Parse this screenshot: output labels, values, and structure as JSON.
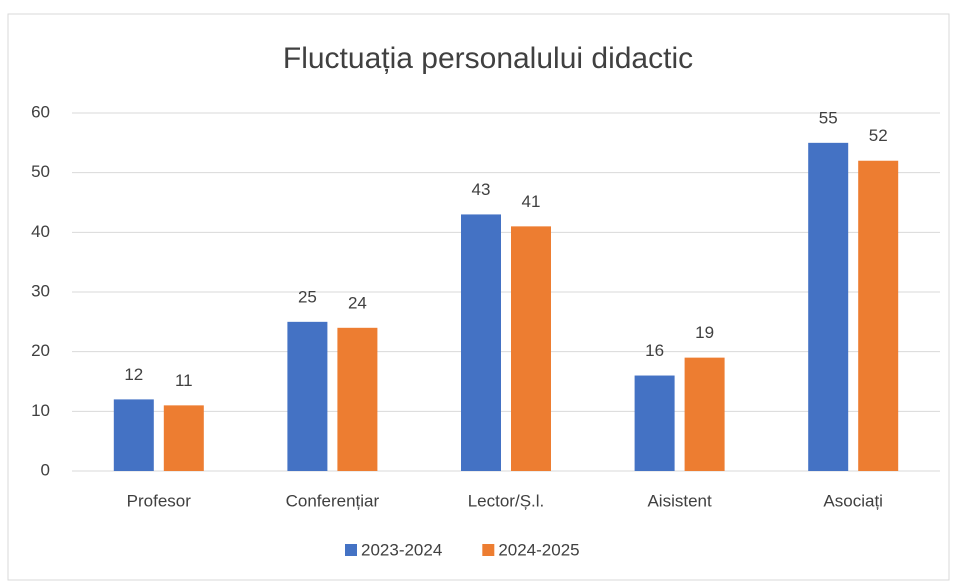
{
  "chart_data": {
    "type": "bar",
    "title": "Fluctuația personalului didactic",
    "categories": [
      "Profesor",
      "Conferențiar",
      "Lector/Ș.l.",
      "Aisistent",
      "Asociați"
    ],
    "series": [
      {
        "name": "2023-2024",
        "color": "#4472c4",
        "values": [
          12,
          25,
          43,
          16,
          55
        ]
      },
      {
        "name": "2024-2025",
        "color": "#ed7d31",
        "values": [
          11,
          24,
          41,
          19,
          52
        ]
      }
    ],
    "ylim": [
      0,
      60
    ],
    "yticks": [
      0,
      10,
      20,
      30,
      40,
      50,
      60
    ],
    "grid": true,
    "legend": "bottom"
  }
}
